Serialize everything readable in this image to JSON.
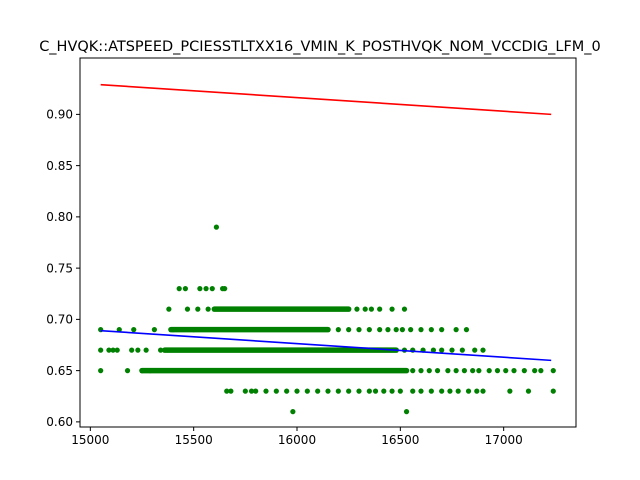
{
  "chart_data": {
    "type": "scatter",
    "title": "C_HVQK::ATSPEED_PCIESSTLTXX16_VMIN_K_POSTHVQK_NOM_VCCDIG_LFM_0",
    "xlabel": "",
    "ylabel": "",
    "xlim": [
      14950,
      17350
    ],
    "ylim": [
      0.595,
      0.955
    ],
    "x_ticks": [
      15000,
      15500,
      16000,
      16500,
      17000
    ],
    "x_tick_labels": [
      "15000",
      "15500",
      "16000",
      "16500",
      "17000"
    ],
    "y_ticks": [
      0.6,
      0.65,
      0.7,
      0.75,
      0.8,
      0.85,
      0.9
    ],
    "y_tick_labels": [
      "0.60",
      "0.65",
      "0.70",
      "0.75",
      "0.80",
      "0.85",
      "0.90"
    ],
    "grid": false,
    "colors": {
      "points": "#008000",
      "upper_line": "#ff0000",
      "fit_line": "#0000ff"
    },
    "lines": [
      {
        "role": "upper",
        "color": "#ff0000",
        "x": [
          15050,
          17230
        ],
        "y": [
          0.929,
          0.9
        ]
      },
      {
        "role": "fit",
        "color": "#0000ff",
        "x": [
          15050,
          17230
        ],
        "y": [
          0.689,
          0.66
        ]
      }
    ],
    "scatter_bands": [
      {
        "y": 0.65,
        "x_start": 15250,
        "x_end": 16530
      },
      {
        "y": 0.67,
        "x_start": 15360,
        "x_end": 16480
      },
      {
        "y": 0.69,
        "x_start": 15390,
        "x_end": 16150
      },
      {
        "y": 0.71,
        "x_start": 15600,
        "x_end": 16250
      }
    ],
    "series": [
      {
        "name": "",
        "color": "#008000",
        "points": [
          [
            15050,
            0.69
          ],
          [
            15050,
            0.67
          ],
          [
            15050,
            0.65
          ],
          [
            15090,
            0.67
          ],
          [
            15110,
            0.67
          ],
          [
            15130,
            0.67
          ],
          [
            15140,
            0.69
          ],
          [
            15180,
            0.65
          ],
          [
            15200,
            0.67
          ],
          [
            15210,
            0.69
          ],
          [
            15230,
            0.67
          ],
          [
            15250,
            0.65
          ],
          [
            15270,
            0.67
          ],
          [
            15290,
            0.65
          ],
          [
            15310,
            0.69
          ],
          [
            15340,
            0.67
          ],
          [
            15380,
            0.71
          ],
          [
            15400,
            0.69
          ],
          [
            15430,
            0.73
          ],
          [
            15460,
            0.73
          ],
          [
            15470,
            0.71
          ],
          [
            15500,
            0.69
          ],
          [
            15520,
            0.71
          ],
          [
            15530,
            0.73
          ],
          [
            15560,
            0.73
          ],
          [
            15570,
            0.71
          ],
          [
            15590,
            0.73
          ],
          [
            15610,
            0.79
          ],
          [
            15640,
            0.73
          ],
          [
            15650,
            0.73
          ],
          [
            15660,
            0.63
          ],
          [
            15680,
            0.63
          ],
          [
            15750,
            0.63
          ],
          [
            15780,
            0.63
          ],
          [
            15800,
            0.63
          ],
          [
            15850,
            0.63
          ],
          [
            15900,
            0.63
          ],
          [
            15950,
            0.63
          ],
          [
            15980,
            0.61
          ],
          [
            16000,
            0.63
          ],
          [
            16050,
            0.63
          ],
          [
            16100,
            0.63
          ],
          [
            16150,
            0.63
          ],
          [
            16200,
            0.63
          ],
          [
            16250,
            0.63
          ],
          [
            16300,
            0.63
          ],
          [
            16350,
            0.63
          ],
          [
            16380,
            0.63
          ],
          [
            16420,
            0.63
          ],
          [
            16460,
            0.63
          ],
          [
            16500,
            0.63
          ],
          [
            16530,
            0.61
          ],
          [
            16560,
            0.63
          ],
          [
            16600,
            0.63
          ],
          [
            16650,
            0.63
          ],
          [
            16700,
            0.63
          ],
          [
            16740,
            0.63
          ],
          [
            16780,
            0.63
          ],
          [
            16830,
            0.63
          ],
          [
            16870,
            0.63
          ],
          [
            16900,
            0.63
          ],
          [
            17030,
            0.63
          ],
          [
            17120,
            0.63
          ],
          [
            17240,
            0.63
          ],
          [
            16290,
            0.71
          ],
          [
            16330,
            0.71
          ],
          [
            16360,
            0.71
          ],
          [
            16400,
            0.71
          ],
          [
            16460,
            0.71
          ],
          [
            16520,
            0.71
          ],
          [
            16200,
            0.69
          ],
          [
            16250,
            0.69
          ],
          [
            16300,
            0.69
          ],
          [
            16350,
            0.69
          ],
          [
            16400,
            0.69
          ],
          [
            16440,
            0.69
          ],
          [
            16480,
            0.69
          ],
          [
            16510,
            0.69
          ],
          [
            16550,
            0.69
          ],
          [
            16600,
            0.69
          ],
          [
            16650,
            0.69
          ],
          [
            16700,
            0.69
          ],
          [
            16770,
            0.69
          ],
          [
            16820,
            0.69
          ],
          [
            16520,
            0.67
          ],
          [
            16560,
            0.67
          ],
          [
            16610,
            0.67
          ],
          [
            16660,
            0.67
          ],
          [
            16700,
            0.67
          ],
          [
            16750,
            0.67
          ],
          [
            16800,
            0.67
          ],
          [
            16860,
            0.67
          ],
          [
            16900,
            0.67
          ],
          [
            16560,
            0.65
          ],
          [
            16600,
            0.65
          ],
          [
            16640,
            0.65
          ],
          [
            16680,
            0.65
          ],
          [
            16730,
            0.65
          ],
          [
            16770,
            0.65
          ],
          [
            16810,
            0.65
          ],
          [
            16850,
            0.65
          ],
          [
            16880,
            0.65
          ],
          [
            16930,
            0.65
          ],
          [
            16970,
            0.65
          ],
          [
            17010,
            0.65
          ],
          [
            17050,
            0.65
          ],
          [
            17100,
            0.65
          ],
          [
            17150,
            0.65
          ],
          [
            17180,
            0.65
          ],
          [
            17240,
            0.65
          ]
        ]
      }
    ]
  }
}
